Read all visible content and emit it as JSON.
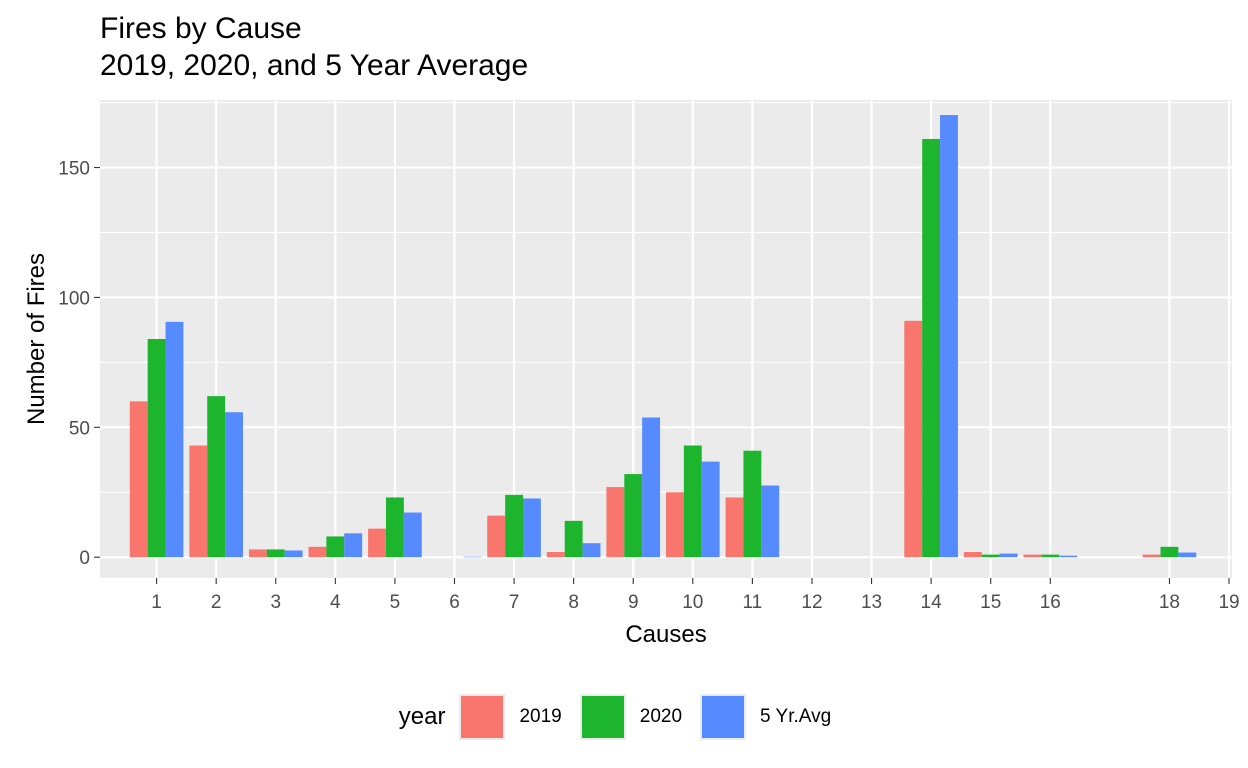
{
  "chart_data": {
    "type": "bar",
    "title": "Fires by Cause",
    "subtitle": "2019, 2020, and 5 Year Average",
    "xlabel": "Causes",
    "ylabel": "Number of Fires",
    "x_ticks": [
      1,
      2,
      3,
      4,
      5,
      6,
      7,
      8,
      9,
      10,
      11,
      12,
      13,
      14,
      15,
      16,
      18,
      19
    ],
    "y_ticks": [
      0,
      50,
      100,
      150
    ],
    "xlim": [
      0.05,
      19.05
    ],
    "ylim": [
      -8,
      176
    ],
    "grid": true,
    "legend_position": "bottom",
    "legend_title": "year",
    "categories": [
      1,
      2,
      3,
      4,
      5,
      6,
      7,
      8,
      9,
      10,
      11,
      14,
      15,
      16,
      18
    ],
    "series": [
      {
        "name": "2019",
        "color": "#F8766D",
        "values": [
          60,
          43,
          3,
          4,
          11,
          0,
          16,
          2,
          27,
          25,
          23,
          91,
          2,
          1,
          1
        ]
      },
      {
        "name": "2020",
        "color": "#1DB52E",
        "values": [
          84,
          62,
          3,
          8,
          23,
          0,
          24,
          14,
          32,
          43,
          41,
          161,
          1,
          1,
          4
        ]
      },
      {
        "name": "5 Yr.Avg",
        "color": "#568AFF",
        "values": [
          90.6,
          55.8,
          2.6,
          9.2,
          17.2,
          0.2,
          22.6,
          5.4,
          53.8,
          36.8,
          27.6,
          170.2,
          1.4,
          0.6,
          1.8
        ]
      }
    ]
  }
}
